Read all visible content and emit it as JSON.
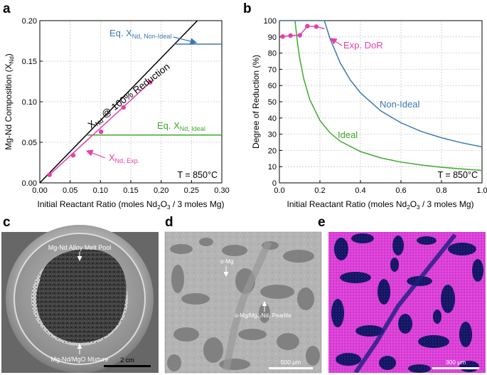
{
  "panel_labels": {
    "a": "a",
    "b": "b",
    "c": "c",
    "d": "d",
    "e": "e"
  },
  "chart_data": [
    {
      "id": "a",
      "type": "line",
      "title": "",
      "xlabel": "Initial Reactant Ratio (moles Nd2O3 / 3 moles Mg)",
      "ylabel": "Mg-Nd Composition (XNd)",
      "xlim": [
        0,
        0.3
      ],
      "ylim": [
        0,
        0.2
      ],
      "xticks": [
        0.0,
        0.05,
        0.1,
        0.15,
        0.2,
        0.25,
        0.3
      ],
      "xtick_labels": [
        "0.00",
        "0.05",
        "0.10",
        "0.15",
        "0.20",
        "0.25",
        "0.30"
      ],
      "yticks": [
        0.0,
        0.05,
        0.1,
        0.15,
        0.2
      ],
      "ytick_labels": [
        "0.00",
        "0.05",
        "0.10",
        "0.15",
        "0.20"
      ],
      "grid": true,
      "series": [
        {
          "name": "XNd @ 100% Reduction",
          "color": "#000000",
          "x": [
            0,
            0.3
          ],
          "y": [
            0,
            0.231
          ]
        },
        {
          "name": "Eq. XNd, Non-Ideal",
          "color": "#3b78b4",
          "x": [
            0.222,
            0.3
          ],
          "y": [
            0.171,
            0.171
          ]
        },
        {
          "name": "Eq. XNd, Ideal",
          "color": "#3daa2b",
          "x": [
            0.077,
            0.3
          ],
          "y": [
            0.059,
            0.059
          ]
        },
        {
          "name": "XNd, Exp. (fit)",
          "color": "#e63fa8",
          "x": [
            0.016,
            0.182
          ],
          "y": [
            0.01,
            0.124
          ]
        },
        {
          "name": "XNd, Exp.",
          "color": "#e63fa8",
          "marker": "circle",
          "x": [
            0.016,
            0.055,
            0.101,
            0.138,
            0.182
          ],
          "y": [
            0.01,
            0.034,
            0.063,
            0.093,
            0.124
          ]
        }
      ],
      "annotations": {
        "reduction": {
          "main": "X",
          "sub": "Nd",
          "rest": " @ 100% Reduction"
        },
        "nonideal": {
          "main": "Eq. X",
          "sub": "Nd, Non-Ideal"
        },
        "ideal": {
          "main": "Eq. X",
          "sub": "Nd, Ideal"
        },
        "exp": {
          "main": "X",
          "sub": "Nd, Exp."
        },
        "temp": "T = 850°C"
      }
    },
    {
      "id": "b",
      "type": "line",
      "title": "",
      "xlabel": "Initial Reactant Ratio (moles Nd2O3 / 3 moles Mg)",
      "ylabel": "Degree of Reduction (%)",
      "xlim": [
        0,
        1.0
      ],
      "ylim": [
        0,
        100
      ],
      "xticks": [
        0.0,
        0.2,
        0.4,
        0.6,
        0.8,
        1.0
      ],
      "xtick_labels": [
        "0.0",
        "0.2",
        "0.4",
        "0.6",
        "0.8",
        "1.0"
      ],
      "yticks": [
        0,
        10,
        20,
        30,
        40,
        50,
        60,
        70,
        80,
        90,
        100
      ],
      "ytick_labels": [
        "0",
        "10",
        "20",
        "30",
        "40",
        "50",
        "60",
        "70",
        "80",
        "90",
        "100"
      ],
      "grid": true,
      "series": [
        {
          "name": "Non-Ideal",
          "color": "#3b78b4",
          "x": [
            0,
            0.222,
            0.25,
            0.3,
            0.35,
            0.4,
            0.5,
            0.6,
            0.7,
            0.8,
            0.9,
            1.0
          ],
          "y": [
            100,
            100,
            88.8,
            74.0,
            63.4,
            55.5,
            44.4,
            37.0,
            31.7,
            27.8,
            24.7,
            22.2
          ]
        },
        {
          "name": "Ideal",
          "color": "#3daa2b",
          "x": [
            0.077,
            0.09,
            0.1,
            0.12,
            0.15,
            0.2,
            0.25,
            0.3,
            0.4,
            0.5,
            0.6,
            0.7,
            0.8,
            0.9,
            1.0
          ],
          "y": [
            100,
            85.6,
            77.0,
            64.2,
            51.3,
            38.5,
            30.8,
            25.7,
            19.3,
            15.4,
            12.8,
            11.0,
            9.6,
            8.6,
            7.7
          ]
        },
        {
          "name": "Exp. DoR (line)",
          "color": "#e63fa8",
          "x": [
            0.016,
            0.055,
            0.101,
            0.138,
            0.182,
            0.222
          ],
          "y": [
            90.2,
            90.8,
            91.0,
            96.6,
            96.3,
            95.0
          ]
        },
        {
          "name": "Exp. DoR",
          "color": "#e63fa8",
          "marker": "circle",
          "x": [
            0.016,
            0.055,
            0.101,
            0.138,
            0.182
          ],
          "y": [
            90.2,
            90.8,
            91.0,
            96.6,
            96.3
          ]
        }
      ],
      "annotations": {
        "exp": "Exp. DoR",
        "nonideal": "Non-Ideal",
        "ideal": "Ideal",
        "temp": "T = 850°C"
      }
    }
  ],
  "photos": {
    "c": {
      "label_top": "Mg-Nd Alloy Melt Pool",
      "label_bottom": "Mg-Nd/MgO Mixture",
      "scale": "2 cm"
    },
    "d": {
      "label1": "α-Mg",
      "label2": "α-Mg/Mg₁₂Nd₁ Pearlite",
      "scale": "500 μm"
    },
    "e": {
      "scale": "300 μm"
    }
  }
}
